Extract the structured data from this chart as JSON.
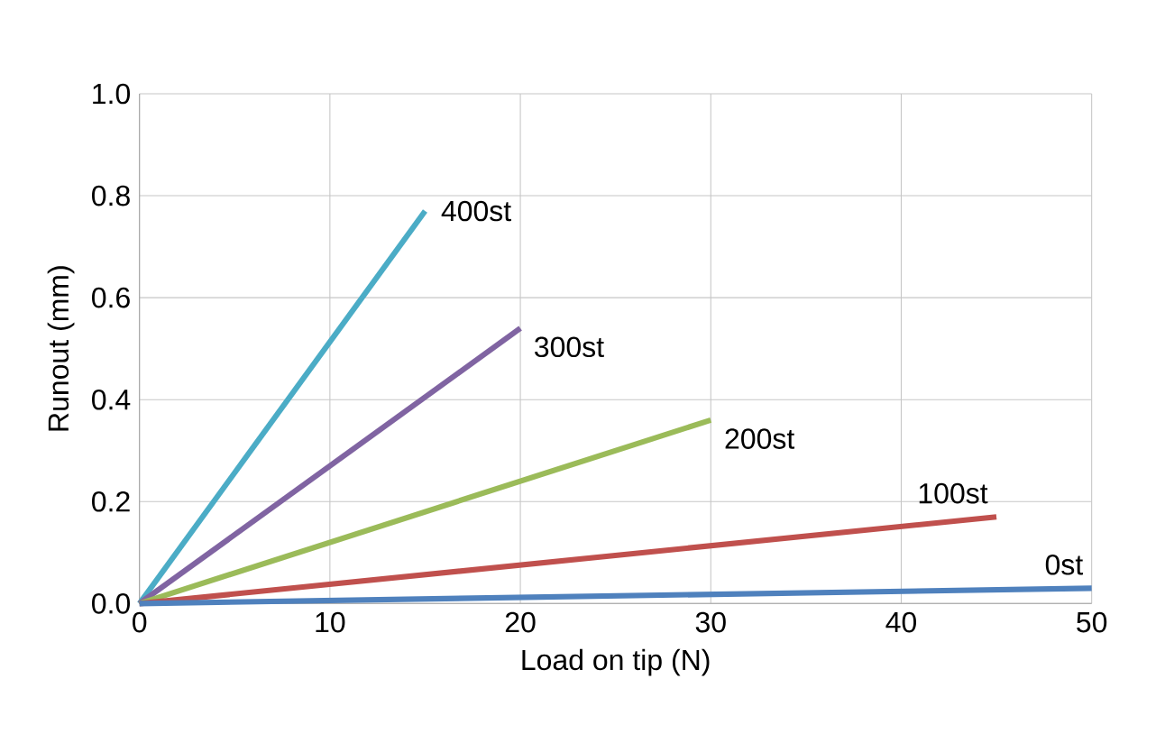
{
  "chart_data": {
    "type": "line",
    "xlabel": "Load on tip (N)",
    "ylabel": "Runout (mm)",
    "xlim": [
      0,
      50
    ],
    "ylim": [
      0,
      1.0
    ],
    "xticks": [
      0,
      10,
      20,
      30,
      40,
      50
    ],
    "yticks": [
      {
        "value": 0,
        "label": "0.0"
      },
      {
        "value": 0.2,
        "label": "0.2"
      },
      {
        "value": 0.4,
        "label": "0.4"
      },
      {
        "value": 0.6,
        "label": "0.6"
      },
      {
        "value": 0.8,
        "label": "0.8"
      },
      {
        "value": 1.0,
        "label": "1.0"
      }
    ],
    "grid": true,
    "legend": false,
    "marker": "none",
    "line_style": "solid",
    "series": [
      {
        "name": "400st",
        "color": "#4bacc6",
        "x": [
          0,
          15
        ],
        "values": [
          0,
          0.77
        ]
      },
      {
        "name": "300st",
        "color": "#8064a2",
        "x": [
          0,
          20
        ],
        "values": [
          0,
          0.54
        ]
      },
      {
        "name": "200st",
        "color": "#9bbb59",
        "x": [
          0,
          30
        ],
        "values": [
          0,
          0.36
        ]
      },
      {
        "name": "100st",
        "color": "#c0504d",
        "x": [
          0,
          45
        ],
        "values": [
          0,
          0.17
        ]
      },
      {
        "name": "0st",
        "color": "#4f81bd",
        "x": [
          0,
          50
        ],
        "values": [
          0,
          0.03
        ]
      }
    ]
  }
}
